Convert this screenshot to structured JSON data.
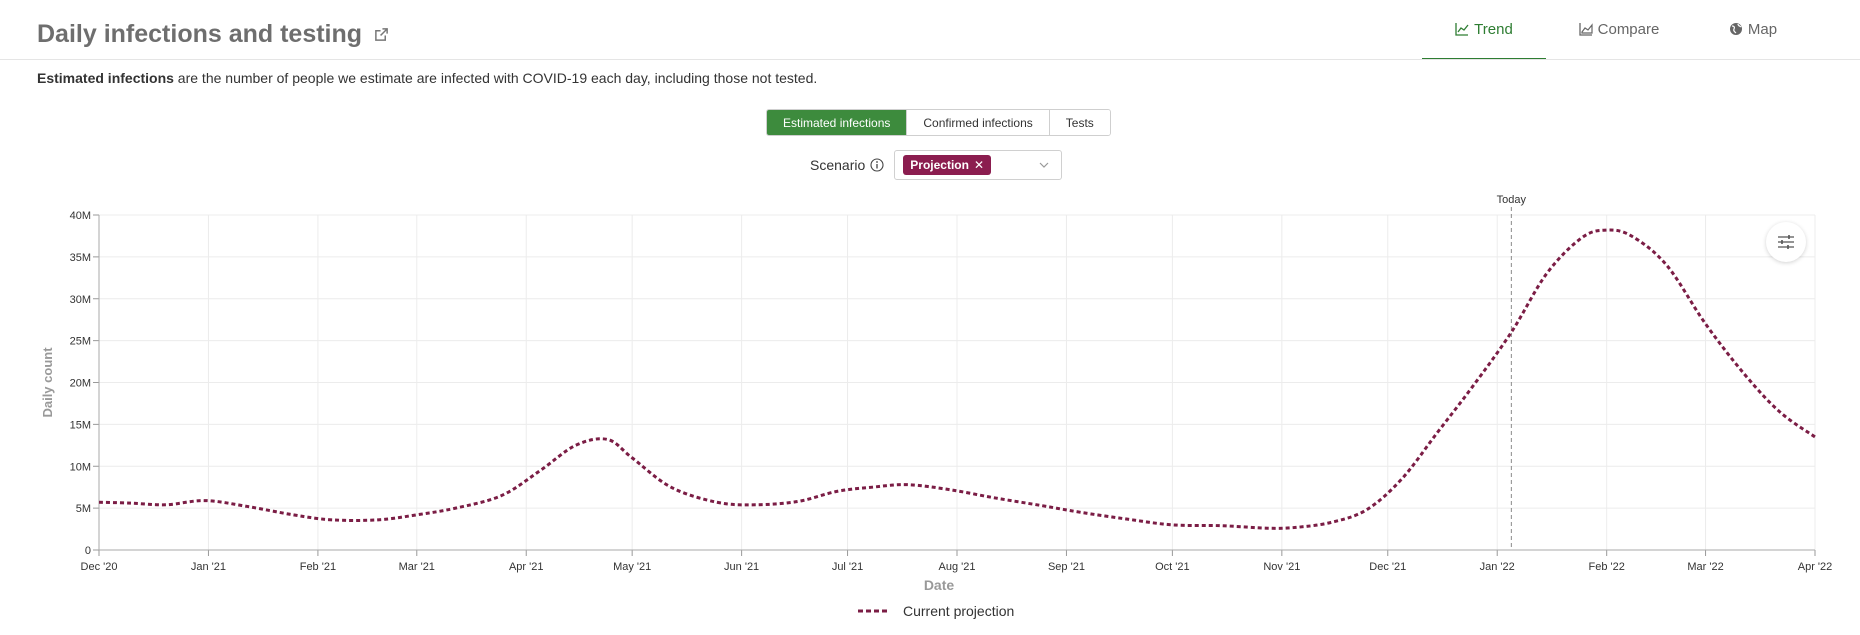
{
  "header": {
    "title": "Daily infections and testing",
    "tabs": [
      {
        "label": "Trend",
        "icon": "line-chart-icon",
        "active": true
      },
      {
        "label": "Compare",
        "icon": "area-chart-icon",
        "active": false
      },
      {
        "label": "Map",
        "icon": "globe-icon",
        "active": false
      }
    ]
  },
  "description": {
    "bold": "Estimated infections",
    "rest": " are the number of people we estimate are infected with COVID-19 each day, including those not tested."
  },
  "metric_buttons": [
    {
      "label": "Estimated infections",
      "active": true
    },
    {
      "label": "Confirmed infections",
      "active": false
    },
    {
      "label": "Tests",
      "active": false
    }
  ],
  "scenario": {
    "label": "Scenario",
    "selected_tag": "Projection"
  },
  "colors": {
    "accent": "#3d8b3d",
    "series": "#7b1d45"
  },
  "chart_data": {
    "type": "line",
    "xlabel": "Date",
    "ylabel": "Daily count",
    "ylim": [
      0,
      40000000
    ],
    "y_ticks": [
      {
        "value": 0,
        "label": "0"
      },
      {
        "value": 5000000,
        "label": "5M"
      },
      {
        "value": 10000000,
        "label": "10M"
      },
      {
        "value": 15000000,
        "label": "15M"
      },
      {
        "value": 20000000,
        "label": "20M"
      },
      {
        "value": 25000000,
        "label": "25M"
      },
      {
        "value": 30000000,
        "label": "30M"
      },
      {
        "value": 35000000,
        "label": "35M"
      },
      {
        "value": 40000000,
        "label": "40M"
      }
    ],
    "x_range": [
      "2020-12-01",
      "2022-04-01"
    ],
    "x_ticks": [
      {
        "date": "2020-12-01",
        "label": "Dec '20"
      },
      {
        "date": "2021-01-01",
        "label": "Jan '21"
      },
      {
        "date": "2021-02-01",
        "label": "Feb '21"
      },
      {
        "date": "2021-03-01",
        "label": "Mar '21"
      },
      {
        "date": "2021-04-01",
        "label": "Apr '21"
      },
      {
        "date": "2021-05-01",
        "label": "May '21"
      },
      {
        "date": "2021-06-01",
        "label": "Jun '21"
      },
      {
        "date": "2021-07-01",
        "label": "Jul '21"
      },
      {
        "date": "2021-08-01",
        "label": "Aug '21"
      },
      {
        "date": "2021-09-01",
        "label": "Sep '21"
      },
      {
        "date": "2021-10-01",
        "label": "Oct '21"
      },
      {
        "date": "2021-11-01",
        "label": "Nov '21"
      },
      {
        "date": "2021-12-01",
        "label": "Dec '21"
      },
      {
        "date": "2022-01-01",
        "label": "Jan '22"
      },
      {
        "date": "2022-02-01",
        "label": "Feb '22"
      },
      {
        "date": "2022-03-01",
        "label": "Mar '22"
      },
      {
        "date": "2022-04-01",
        "label": "Apr '22"
      }
    ],
    "today": {
      "date": "2022-01-05",
      "label": "Today"
    },
    "grid": true,
    "legend_position": "bottom-center",
    "series": [
      {
        "name": "Current projection",
        "style": "dashed",
        "points": [
          [
            "2020-12-01",
            5700000
          ],
          [
            "2020-12-10",
            5600000
          ],
          [
            "2020-12-20",
            5400000
          ],
          [
            "2020-12-31",
            5900000
          ],
          [
            "2021-01-12",
            5200000
          ],
          [
            "2021-01-25",
            4200000
          ],
          [
            "2021-02-05",
            3600000
          ],
          [
            "2021-02-18",
            3600000
          ],
          [
            "2021-03-01",
            4200000
          ],
          [
            "2021-03-12",
            5000000
          ],
          [
            "2021-03-25",
            6500000
          ],
          [
            "2021-04-05",
            9500000
          ],
          [
            "2021-04-15",
            12500000
          ],
          [
            "2021-04-24",
            13200000
          ],
          [
            "2021-05-01",
            11000000
          ],
          [
            "2021-05-12",
            7500000
          ],
          [
            "2021-05-25",
            5700000
          ],
          [
            "2021-06-05",
            5400000
          ],
          [
            "2021-06-17",
            5800000
          ],
          [
            "2021-06-28",
            7000000
          ],
          [
            "2021-07-08",
            7500000
          ],
          [
            "2021-07-18",
            7800000
          ],
          [
            "2021-07-30",
            7200000
          ],
          [
            "2021-08-12",
            6200000
          ],
          [
            "2021-08-25",
            5300000
          ],
          [
            "2021-09-05",
            4500000
          ],
          [
            "2021-09-18",
            3700000
          ],
          [
            "2021-10-01",
            3000000
          ],
          [
            "2021-10-15",
            2900000
          ],
          [
            "2021-10-28",
            2600000
          ],
          [
            "2021-11-05",
            2700000
          ],
          [
            "2021-11-15",
            3300000
          ],
          [
            "2021-11-25",
            4800000
          ],
          [
            "2021-12-05",
            8500000
          ],
          [
            "2021-12-15",
            14000000
          ],
          [
            "2021-12-25",
            19500000
          ],
          [
            "2022-01-05",
            26000000
          ],
          [
            "2022-01-15",
            33000000
          ],
          [
            "2022-01-25",
            37300000
          ],
          [
            "2022-02-01",
            38200000
          ],
          [
            "2022-02-08",
            37500000
          ],
          [
            "2022-02-18",
            34000000
          ],
          [
            "2022-03-01",
            27000000
          ],
          [
            "2022-03-12",
            21000000
          ],
          [
            "2022-03-22",
            16500000
          ],
          [
            "2022-04-01",
            13500000
          ]
        ]
      }
    ]
  }
}
